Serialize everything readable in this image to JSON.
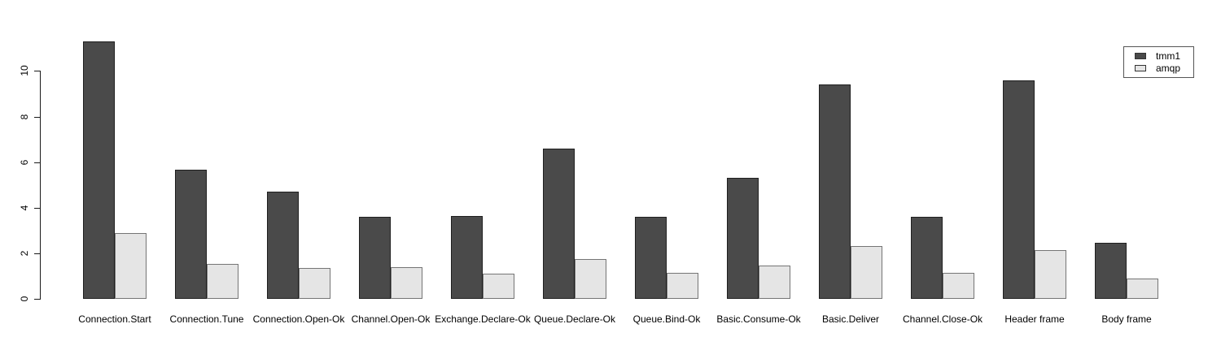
{
  "chart_data": {
    "type": "bar",
    "title": "",
    "xlabel": "",
    "ylabel": "",
    "categories": [
      "Connection.Start",
      "Connection.Tune",
      "Connection.Open-Ok",
      "Channel.Open-Ok",
      "Exchange.Declare-Ok",
      "Queue.Declare-Ok",
      "Queue.Bind-Ok",
      "Basic.Consume-Ok",
      "Basic.Deliver",
      "Channel.Close-Ok",
      "Header frame",
      "Body frame"
    ],
    "series": [
      {
        "name": "tmm1",
        "color": "#4a4a4a",
        "border_color": "#1f1f1f",
        "values": [
          11.3,
          5.65,
          4.7,
          3.6,
          3.65,
          6.6,
          3.6,
          5.3,
          9.4,
          3.6,
          9.6,
          2.45
        ]
      },
      {
        "name": "amqp",
        "color": "#e5e5e5",
        "border_color": "#757575",
        "values": [
          2.9,
          1.55,
          1.35,
          1.4,
          1.1,
          1.75,
          1.15,
          1.45,
          2.3,
          1.15,
          2.15,
          0.9
        ]
      }
    ],
    "yticks": [
      0,
      2,
      4,
      6,
      8,
      10
    ],
    "ylim": [
      0,
      11.5
    ],
    "grid": false,
    "legend_position": "top-right",
    "background_color": "#ffffff",
    "axis_color": "#1a1a1a"
  }
}
